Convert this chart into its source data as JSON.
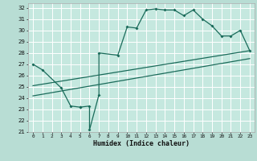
{
  "xlabel": "Humidex (Indice chaleur)",
  "xlim": [
    -0.5,
    23.5
  ],
  "ylim": [
    21,
    32.4
  ],
  "yticks": [
    21,
    22,
    23,
    24,
    25,
    26,
    27,
    28,
    29,
    30,
    31,
    32
  ],
  "xticks": [
    0,
    1,
    2,
    3,
    4,
    5,
    6,
    7,
    8,
    9,
    10,
    11,
    12,
    13,
    14,
    15,
    16,
    17,
    18,
    19,
    20,
    21,
    22,
    23
  ],
  "bg_color": "#b8ddd4",
  "plot_bg_color": "#c5e8df",
  "line_color": "#1a6b5a",
  "grid_color": "#ffffff",
  "line1_x": [
    0,
    1,
    3,
    4,
    5,
    5,
    6,
    6,
    7,
    7,
    9,
    10,
    11,
    12,
    13,
    14,
    15,
    16,
    17,
    18,
    19,
    20,
    21,
    22,
    23
  ],
  "line1_y": [
    27.0,
    26.5,
    24.9,
    23.3,
    23.2,
    23.2,
    23.3,
    21.2,
    24.3,
    28.0,
    27.8,
    30.3,
    30.2,
    31.8,
    31.9,
    31.8,
    31.8,
    31.3,
    31.8,
    31.0,
    30.4,
    29.5,
    29.5,
    30.0,
    28.2
  ],
  "line2_x": [
    0,
    23
  ],
  "line2_y": [
    25.1,
    28.2
  ],
  "line3_x": [
    0,
    23
  ],
  "line3_y": [
    24.2,
    27.5
  ]
}
